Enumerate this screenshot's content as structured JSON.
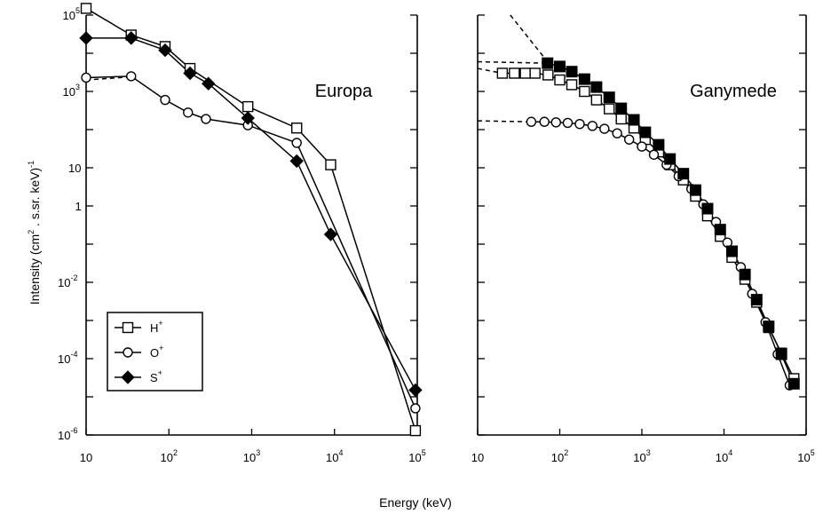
{
  "figure": {
    "xlabel": "Energy (keV)",
    "ylabel": {
      "main": "Intensity (cm",
      "sup1": "2",
      "mid": " . s.sr. keV)",
      "sup2": "-1"
    }
  },
  "legend": {
    "placement": "lower-left of left panel",
    "entries": [
      {
        "base": "H",
        "sup": "+",
        "marker": "open-square"
      },
      {
        "base": "O",
        "sup": "+",
        "marker": "open-circle"
      },
      {
        "base": "S",
        "sup": "+",
        "marker": "filled-diamond"
      }
    ]
  },
  "chart_data": [
    {
      "type": "line",
      "title": "Europa",
      "xscale": "log",
      "yscale": "log",
      "xlim": [
        10,
        100000
      ],
      "ylim": [
        1e-06,
        100000
      ],
      "x_ticks": [
        {
          "base": "10",
          "exp": "",
          "value": 10
        },
        {
          "base": "10",
          "exp": "2",
          "value": 100
        },
        {
          "base": "10",
          "exp": "3",
          "value": 1000
        },
        {
          "base": "10",
          "exp": "4",
          "value": 10000
        },
        {
          "base": "10",
          "exp": "5",
          "value": 100000
        }
      ],
      "y_ticks": [
        {
          "base": "10",
          "exp": "5",
          "value": 100000
        },
        {
          "base": "10",
          "exp": "3",
          "value": 1000
        },
        {
          "base": "10",
          "exp": "",
          "value": 10
        },
        {
          "base": "1",
          "exp": "",
          "value": 1
        },
        {
          "base": "10",
          "exp": "-2",
          "value": 0.01
        },
        {
          "base": "10",
          "exp": "-4",
          "value": 0.0001
        },
        {
          "base": "10",
          "exp": "-6",
          "value": 1e-06
        }
      ],
      "series": [
        {
          "name": "H+",
          "marker": "open-square",
          "x": [
            10,
            35,
            90,
            180,
            900,
            3500,
            9000,
            95000
          ],
          "y": [
            150000,
            30000,
            15000,
            4000,
            400,
            110,
            12,
            1.3e-06
          ]
        },
        {
          "name": "O+",
          "marker": "open-circle",
          "x": [
            10,
            35,
            90,
            170,
            280,
            900,
            3500,
            95000
          ],
          "y": [
            2300,
            2500,
            600,
            280,
            190,
            130,
            45,
            5e-06
          ]
        },
        {
          "name": "S+",
          "marker": "filled-diamond",
          "x": [
            10,
            35,
            90,
            180,
            300,
            900,
            3500,
            9000,
            95000
          ],
          "y": [
            25000,
            25000,
            12000,
            3000,
            1600,
            200,
            15,
            0.18,
            1.5e-05
          ]
        }
      ],
      "dashed_extrapolations": [
        {
          "series": "O+",
          "x": [
            10,
            35
          ],
          "y": [
            2000,
            2400
          ]
        }
      ]
    },
    {
      "type": "scatter",
      "title": "Ganymede",
      "xscale": "log",
      "yscale": "log",
      "xlim": [
        10,
        100000
      ],
      "ylim": [
        1e-06,
        100000
      ],
      "x_ticks": [
        {
          "base": "10",
          "exp": "",
          "value": 10
        },
        {
          "base": "10",
          "exp": "2",
          "value": 100
        },
        {
          "base": "10",
          "exp": "3",
          "value": 1000
        },
        {
          "base": "10",
          "exp": "4",
          "value": 10000
        },
        {
          "base": "10",
          "exp": "5",
          "value": 100000
        }
      ],
      "series": [
        {
          "name": "H+",
          "marker": "open-square",
          "x": [
            20,
            28,
            38,
            50,
            72,
            100,
            140,
            200,
            280,
            400,
            560,
            800,
            1100,
            1600,
            2200,
            3200,
            4500,
            6300,
            9000,
            12500,
            18000,
            25000,
            35000,
            50000,
            71000
          ],
          "y": [
            3000,
            3000,
            3000,
            3000,
            2700,
            2000,
            1500,
            1000,
            600,
            350,
            190,
            110,
            55,
            26,
            12,
            4.8,
            1.8,
            0.55,
            0.16,
            0.045,
            0.012,
            0.003,
            0.00065,
            0.00014,
            3e-05
          ]
        },
        {
          "name": "O+",
          "marker": "open-circle",
          "x": [
            45,
            65,
            90,
            125,
            175,
            250,
            350,
            500,
            700,
            1000,
            1400,
            2000,
            2800,
            4000,
            5600,
            8000,
            11000,
            16000,
            22000,
            32000,
            45000,
            63000
          ],
          "y": [
            160,
            160,
            155,
            150,
            140,
            125,
            105,
            80,
            55,
            36,
            22,
            12,
            6,
            2.8,
            1.1,
            0.38,
            0.11,
            0.025,
            0.005,
            0.0009,
            0.00013,
            2e-05
          ]
        },
        {
          "name": "S+",
          "marker": "filled-square",
          "x": [
            71,
            100,
            140,
            200,
            280,
            400,
            560,
            800,
            1100,
            1600,
            2200,
            3200,
            4500,
            6300,
            9000,
            12500,
            18000,
            25000,
            35000,
            50000,
            71000
          ],
          "y": [
            5500,
            4500,
            3300,
            2100,
            1300,
            700,
            360,
            180,
            85,
            40,
            17,
            7,
            2.6,
            0.85,
            0.24,
            0.065,
            0.016,
            0.0035,
            0.0007,
            0.00013,
            2.2e-05
          ]
        }
      ],
      "dashed_extrapolations": [
        {
          "series": "S+",
          "x": [
            10,
            71
          ],
          "y": [
            6000,
            5500
          ]
        },
        {
          "series": "H+",
          "x": [
            10,
            20
          ],
          "y": [
            4000,
            3000
          ]
        },
        {
          "series": "O+",
          "x": [
            10,
            45
          ],
          "y": [
            170,
            160
          ]
        },
        {
          "series": "power-law",
          "x": [
            25,
            71
          ],
          "y": [
            100000,
            6000
          ]
        }
      ]
    }
  ]
}
